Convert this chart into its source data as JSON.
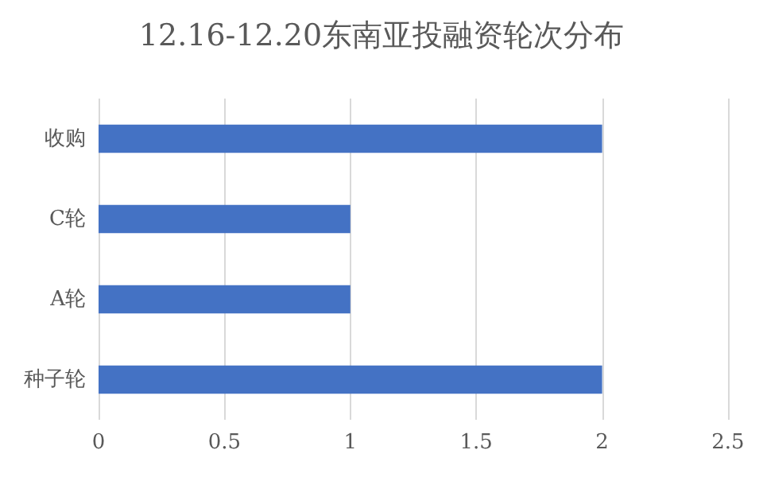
{
  "chart_data": {
    "type": "bar",
    "orientation": "horizontal",
    "title": "12.16-12.20东南亚投融资轮次分布",
    "categories": [
      "收购",
      "C轮",
      "A轮",
      "种子轮"
    ],
    "values": [
      2,
      1,
      1,
      2
    ],
    "color": "#4472c4",
    "xlim": [
      0,
      2.5
    ],
    "xticks": [
      0,
      0.5,
      1,
      1.5,
      2,
      2.5
    ],
    "grid": "x"
  }
}
